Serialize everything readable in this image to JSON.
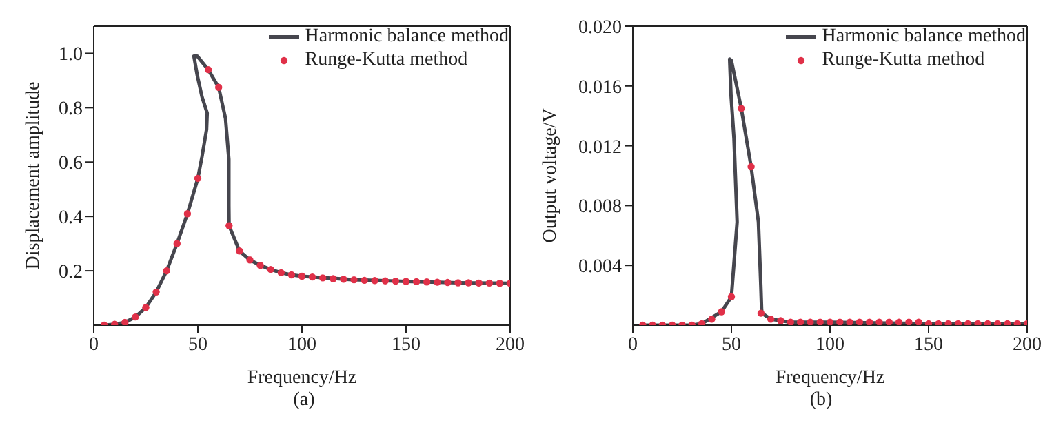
{
  "chart_data": [
    {
      "type": "line",
      "xlabel": "Frequency/Hz",
      "ylabel": "Displacement amplitude",
      "annotations": [
        "(a)"
      ],
      "xlim": [
        0,
        200
      ],
      "xticks": [
        0,
        50,
        100,
        150,
        200
      ],
      "ylim": [
        0,
        1.1
      ],
      "yticks": [
        {
          "value": 0.2,
          "label": "0.2"
        },
        {
          "value": 0.4,
          "label": "0.4"
        },
        {
          "value": 0.6,
          "label": "0.6"
        },
        {
          "value": 0.8,
          "label": "0.8"
        },
        {
          "value": 1,
          "label": "1.0"
        }
      ],
      "legend": "top right",
      "grid": false,
      "series": [
        {
          "name": "Harmonic balance method",
          "color": "#46464e",
          "x": [
            5,
            10,
            15,
            20,
            25,
            30,
            35,
            40,
            45,
            50,
            52,
            54.2,
            54.5,
            52,
            49.7,
            48.1,
            49.7,
            55,
            60,
            63.3,
            64.9,
            64.9,
            65,
            70,
            75,
            80,
            85,
            90,
            95,
            100,
            125,
            150,
            175,
            200
          ],
          "values": [
            0,
            0.003,
            0.01,
            0.03,
            0.065,
            0.122,
            0.2,
            0.3,
            0.41,
            0.54,
            0.62,
            0.72,
            0.78,
            0.84,
            0.92,
            0.99,
            0.99,
            0.94,
            0.875,
            0.76,
            0.61,
            0.44,
            0.366,
            0.273,
            0.24,
            0.22,
            0.205,
            0.193,
            0.185,
            0.18,
            0.167,
            0.161,
            0.156,
            0.154
          ]
        },
        {
          "name": "Runge-Kutta method",
          "type": "scatter",
          "marker": "circle",
          "color": "#e03048",
          "x": [
            5,
            10,
            15,
            20,
            25,
            30,
            35,
            40,
            45,
            50,
            55,
            60,
            65,
            70,
            75,
            80,
            85,
            90,
            95,
            100,
            105,
            110,
            115,
            120,
            125,
            130,
            135,
            140,
            145,
            150,
            155,
            160,
            165,
            170,
            175,
            180,
            185,
            190,
            195,
            200
          ],
          "values": [
            0,
            0.003,
            0.01,
            0.03,
            0.065,
            0.122,
            0.2,
            0.3,
            0.41,
            0.54,
            0.94,
            0.875,
            0.366,
            0.273,
            0.24,
            0.22,
            0.205,
            0.193,
            0.185,
            0.18,
            0.177,
            0.174,
            0.171,
            0.169,
            0.167,
            0.165,
            0.164,
            0.163,
            0.162,
            0.161,
            0.16,
            0.159,
            0.158,
            0.157,
            0.156,
            0.156,
            0.155,
            0.155,
            0.154,
            0.154
          ]
        }
      ]
    },
    {
      "type": "line",
      "xlabel": "Frequency/Hz",
      "ylabel": "Output voltage/V",
      "annotations": [
        "(b)"
      ],
      "xlim": [
        0,
        200
      ],
      "xticks": [
        0,
        50,
        100,
        150,
        200
      ],
      "ylim": [
        0,
        0.02
      ],
      "yticks": [
        {
          "value": 0.004,
          "label": "0.004"
        },
        {
          "value": 0.008,
          "label": "0.008"
        },
        {
          "value": 0.012,
          "label": "0.012"
        },
        {
          "value": 0.016,
          "label": "0.016"
        },
        {
          "value": 0.02,
          "label": "0.020"
        }
      ],
      "legend": "top right",
      "grid": false,
      "series": [
        {
          "name": "Harmonic balance method",
          "color": "#46464e",
          "x": [
            5,
            20,
            30,
            35,
            40,
            45,
            50,
            52.9,
            51.3,
            49.8,
            49.1,
            50,
            55,
            60,
            63.7,
            64.9,
            65.3,
            65.5,
            70,
            80,
            100,
            150,
            200
          ],
          "values": [
            0,
            0,
            0,
            0.0001,
            0.0005,
            0.0009,
            0.0019,
            0.0069,
            0.0125,
            0.0154,
            0.0178,
            0.0177,
            0.0145,
            0.0106,
            0.0069,
            0.0027,
            0.0011,
            0.0008,
            0.0004,
            0.0002,
            0.0002,
            0.0001,
            0.0001
          ]
        },
        {
          "name": "Runge-Kutta method",
          "type": "scatter",
          "marker": "circle",
          "color": "#e03048",
          "x": [
            5,
            10,
            15,
            20,
            25,
            30,
            35,
            40,
            45,
            50,
            55,
            60,
            65,
            70,
            75,
            80,
            85,
            90,
            95,
            100,
            105,
            110,
            115,
            120,
            125,
            130,
            135,
            140,
            145,
            150,
            155,
            160,
            165,
            170,
            175,
            180,
            185,
            190,
            195,
            200
          ],
          "values": [
            0,
            0,
            0,
            0,
            0,
            0,
            0.0001,
            0.0004,
            0.0009,
            0.0019,
            0.0145,
            0.0106,
            0.0008,
            0.0004,
            0.0003,
            0.0002,
            0.0002,
            0.0002,
            0.0002,
            0.0002,
            0.0002,
            0.0002,
            0.0002,
            0.0002,
            0.0002,
            0.0002,
            0.0002,
            0.0002,
            0.0002,
            0.0001,
            0.0001,
            0.0001,
            0.0001,
            0.0001,
            0.0001,
            0.0001,
            0.0001,
            0.0001,
            0.0001,
            0.0001
          ]
        }
      ]
    }
  ]
}
